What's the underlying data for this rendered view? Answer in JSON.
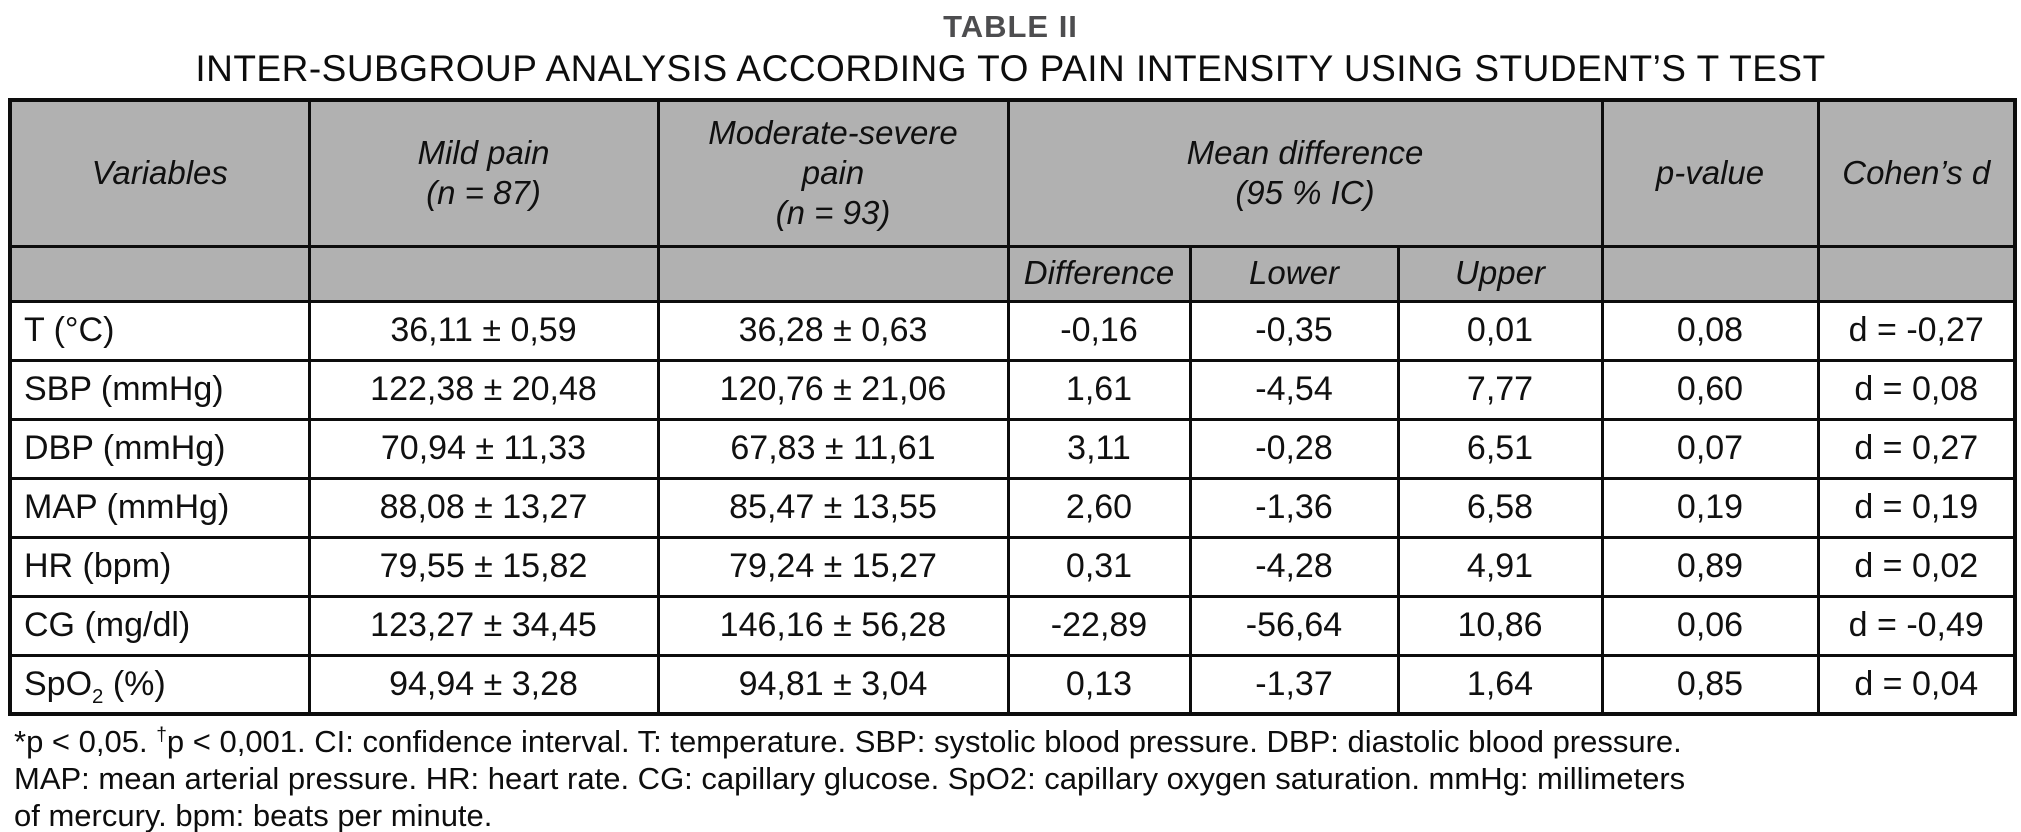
{
  "title": {
    "label": "TABLE II",
    "subtitle": "INTER-SUBGROUP ANALYSIS ACCORDING TO PAIN INTENSITY USING STUDENT’S T TEST"
  },
  "colors": {
    "header_bg": "#b1b1b1",
    "border": "#0d0d0d",
    "title_color": "#4d4d4f",
    "text": "#101010"
  },
  "table": {
    "headers": {
      "variables": "Variables",
      "mild_l1": "Mild pain",
      "mild_l2": "(n = 87)",
      "modsev_l1": "Moderate-severe",
      "modsev_l2": "pain",
      "modsev_l3": "(n = 93)",
      "meandiff_l1": "Mean difference",
      "meandiff_l2": "(95 % IC)",
      "p_value": "p-value",
      "cohens_d": "Cohen’s d",
      "difference": "Difference",
      "lower": "Lower",
      "upper": "Upper"
    },
    "rows": [
      {
        "variable": "T (°C)",
        "mild": "36,11 ± 0,59",
        "moderate_severe": "36,28 ± 0,63",
        "difference": "-0,16",
        "lower": "-0,35",
        "upper": "0,01",
        "p_value": "0,08",
        "cohens_d": "d = -0,27"
      },
      {
        "variable": "SBP (mmHg)",
        "mild": "122,38 ± 20,48",
        "moderate_severe": "120,76 ± 21,06",
        "difference": "1,61",
        "lower": "-4,54",
        "upper": "7,77",
        "p_value": "0,60",
        "cohens_d": "d = 0,08"
      },
      {
        "variable": "DBP (mmHg)",
        "mild": "70,94 ± 11,33",
        "moderate_severe": "67,83 ± 11,61",
        "difference": "3,11",
        "lower": "-0,28",
        "upper": "6,51",
        "p_value": "0,07",
        "cohens_d": "d = 0,27"
      },
      {
        "variable": "MAP (mmHg)",
        "mild": "88,08 ± 13,27",
        "moderate_severe": "85,47 ± 13,55",
        "difference": "2,60",
        "lower": "-1,36",
        "upper": "6,58",
        "p_value": "0,19",
        "cohens_d": "d = 0,19"
      },
      {
        "variable": "HR (bpm)",
        "mild": "79,55 ± 15,82",
        "moderate_severe": "79,24 ± 15,27",
        "difference": "0,31",
        "lower": "-4,28",
        "upper": "4,91",
        "p_value": "0,89",
        "cohens_d": "d = 0,02"
      },
      {
        "variable": "CG (mg/dl)",
        "mild": "123,27 ± 34,45",
        "moderate_severe": "146,16 ± 56,28",
        "difference": "-22,89",
        "lower": "-56,64",
        "upper": "10,86",
        "p_value": "0,06",
        "cohens_d": "d = -0,49"
      },
      {
        "variable": "SpO",
        "variable_sub": "2",
        "variable_post": " (%)",
        "mild": "94,94 ± 3,28",
        "moderate_severe": "94,81 ± 3,04",
        "difference": "0,13",
        "lower": "-1,37",
        "upper": "1,64",
        "p_value": "0,85",
        "cohens_d": "d = 0,04"
      }
    ]
  },
  "footnote": {
    "line1_pre": "*p < 0,05. ",
    "line1_sup": "†",
    "line1_post": "p < 0,001. CI: confidence interval. T: temperature. SBP: systolic blood pressure. DBP: diastolic blood pressure.",
    "line2": "MAP: mean arterial pressure. HR: heart rate. CG: capillary glucose. SpO2: capillary oxygen saturation. mmHg: millimeters",
    "line3": "of mercury. bpm: beats per minute."
  }
}
